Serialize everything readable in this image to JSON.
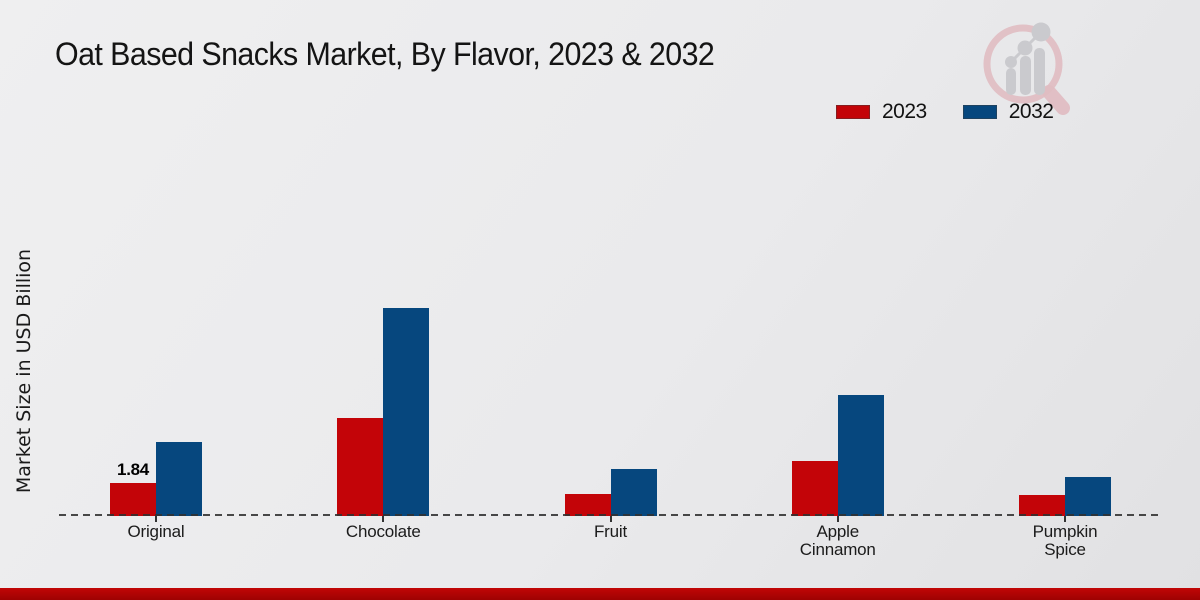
{
  "chart_data": {
    "type": "bar",
    "title": "Oat Based Snacks Market, By Flavor, 2023 & 2032",
    "ylabel": "Market Size in USD Billion",
    "xlabel": "",
    "categories": [
      "Original",
      "Chocolate",
      "Fruit",
      "Apple Cinnamon",
      "Pumpkin Spice"
    ],
    "category_lines": [
      [
        "Original"
      ],
      [
        "Chocolate"
      ],
      [
        "Fruit"
      ],
      [
        "Apple",
        "Cinnamon"
      ],
      [
        "Pumpkin",
        "Spice"
      ]
    ],
    "series": [
      {
        "name": "2023",
        "color": "#c30408",
        "values": [
          1.84,
          5.45,
          1.2,
          3.06,
          1.16
        ]
      },
      {
        "name": "2032",
        "color": "#06477e",
        "values": [
          4.15,
          11.58,
          2.61,
          6.74,
          2.15
        ]
      }
    ],
    "annotations": [
      {
        "series_index": 0,
        "category_index": 0,
        "text": "1.84"
      }
    ],
    "ylim": [
      0,
      12
    ],
    "grid": false,
    "y_axis_ticks_visible": false,
    "legend_position": "top-right",
    "baseline_style": "dashed"
  },
  "colors": {
    "series_2023": "#c30408",
    "series_2032": "#06477e",
    "footer_bar": "#b30505",
    "background": "#e9e9ea",
    "baseline": "#303030",
    "logo_pink": "#e0bac0",
    "logo_gray": "#c9c9cd"
  },
  "logo": {
    "name": "growth-chart-magnifier-logo"
  }
}
